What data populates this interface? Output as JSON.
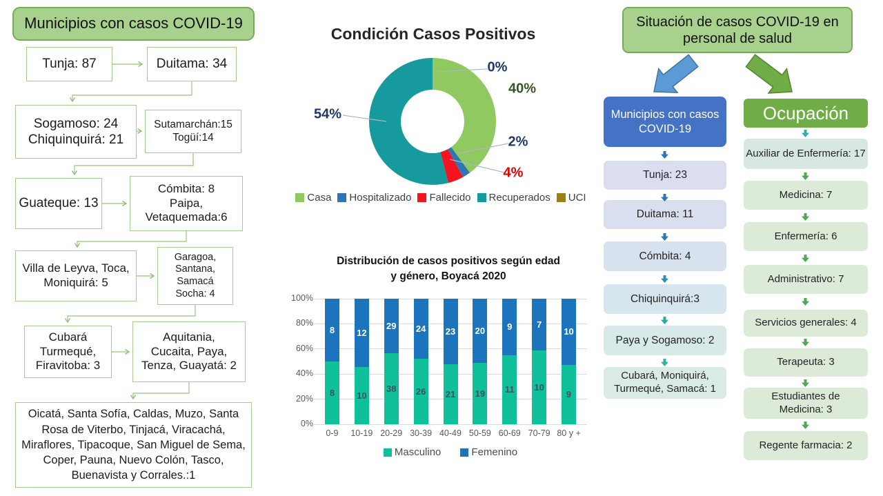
{
  "left_panel": {
    "title": "Municipios con casos COVID-19",
    "boxes": [
      "Tunja: 87",
      "Duitama: 34",
      "Sogamoso: 24\nChiquinquirá: 21",
      "Sutamarchán:15\nTogüí:14",
      "Guateque: 13",
      "Cómbita: 8\nPaipa,\nVetaquemada:6",
      "Villa de Leyva, Toca,\nMoniquirá: 5",
      "Garagoa,\nSantana,\nSamacá\nSocha: 4",
      "Cubará\nTurmequé,\nFiravitoba: 3",
      "Aquitania,\nCucaita, Paya,\nTenza, Guayatá: 2",
      "Oicatá, Santa Sofía, Caldas, Muzo, Santa Rosa de Viterbo, Tinjacá, Viracachá, Miraflores, Tipacoque, San Miguel de Sema, Coper, Pauna, Nuevo Colón, Tasco, Buenavista y Corrales.:1"
    ]
  },
  "chart_data": [
    {
      "type": "pie",
      "donut": true,
      "title": "Condición Casos Positivos",
      "categories": [
        "Casa",
        "Hospitalizado",
        "Fallecido",
        "Recuperados",
        "UCI"
      ],
      "values": [
        40,
        2,
        4,
        54,
        0
      ],
      "unit": "%",
      "colors": [
        "#90c95f",
        "#2e75b6",
        "#f2141e",
        "#179a9e",
        "#9d7f10"
      ],
      "legend_position": "bottom",
      "callouts": [
        {
          "text": "0%",
          "slice": "UCI",
          "color": "#1f3864"
        },
        {
          "text": "40%",
          "slice": "Casa",
          "color": "#375623"
        },
        {
          "text": "2%",
          "slice": "Hospitalizado",
          "color": "#1f3864"
        },
        {
          "text": "4%",
          "slice": "Fallecido",
          "color": "#e00000"
        },
        {
          "text": "54%",
          "slice": "Recuperados",
          "color": "#1f3864"
        }
      ]
    },
    {
      "type": "bar",
      "stacked": true,
      "percent_stacked": true,
      "title": "Distribución de casos positivos según edad\ny género, Boyacá 2020",
      "categories": [
        "0-9",
        "10-19",
        "20-29",
        "30-39",
        "40-49",
        "50-59",
        "60-69",
        "70-79",
        "80 y +"
      ],
      "series": [
        {
          "name": "Masculino",
          "color": "#10c09a",
          "label_color": "#3f5062",
          "values": [
            8,
            10,
            38,
            26,
            21,
            19,
            11,
            10,
            9
          ]
        },
        {
          "name": "Femenino",
          "color": "#1b74bc",
          "label_color": "#ffffff",
          "values": [
            8,
            12,
            29,
            24,
            23,
            20,
            9,
            7,
            10
          ]
        }
      ],
      "y_ticks": [
        "100%",
        "80%",
        "60%",
        "40%",
        "20%",
        "0%"
      ],
      "ylim": [
        0,
        100
      ],
      "grid": true,
      "xlabel": "",
      "ylabel": "",
      "legend_position": "bottom"
    }
  ],
  "right_panel": {
    "title": "Situación de casos COVID-19 en personal de salud",
    "municipios": {
      "header": "Municipios con casos COVID-19",
      "header_color": "#4472c4",
      "items": [
        {
          "text": "Tunja: 23",
          "fill": "#dadeee"
        },
        {
          "text": "Duitama: 11",
          "fill": "#d9dfee"
        },
        {
          "text": "Cómbita: 4",
          "fill": "#d8e1ee"
        },
        {
          "text": "Chiquinquirá:3",
          "fill": "#d7e5ef"
        },
        {
          "text": "Paya y Sogamoso: 2",
          "fill": "#d8e9ea"
        },
        {
          "text": "Cubará, Moniquirá,\nTurmequé, Samacá: 1",
          "fill": "#d9ebe2"
        }
      ],
      "arrow_colors": [
        "#2e75b6",
        "#2e75b6",
        "#2e75b6",
        "#2e8fb0",
        "#2aa9a5",
        "#2fb3a0"
      ]
    },
    "ocupacion": {
      "header": "Ocupación",
      "header_color": "#70ad47",
      "items": [
        {
          "text": "Auxiliar de Enfermería: 17",
          "fill": "#d7e7e1"
        },
        {
          "text": "Medicina: 7",
          "fill": "#dcead8"
        },
        {
          "text": "Enfermería: 6",
          "fill": "#dcead8"
        },
        {
          "text": "Administrativo: 7",
          "fill": "#dcead8"
        },
        {
          "text": "Servicios generales: 4",
          "fill": "#dcead8"
        },
        {
          "text": "Terapeuta: 3",
          "fill": "#dcead8"
        },
        {
          "text": "Estudiantes de\nMedicina: 3",
          "fill": "#dcead8"
        },
        {
          "text": "Regente farmacia: 2",
          "fill": "#dcead8"
        }
      ],
      "arrow_colors": [
        "#29b3a2",
        "#53a653",
        "#53a653",
        "#53a653",
        "#53a653",
        "#53a653",
        "#53a653",
        "#53a653"
      ]
    }
  }
}
